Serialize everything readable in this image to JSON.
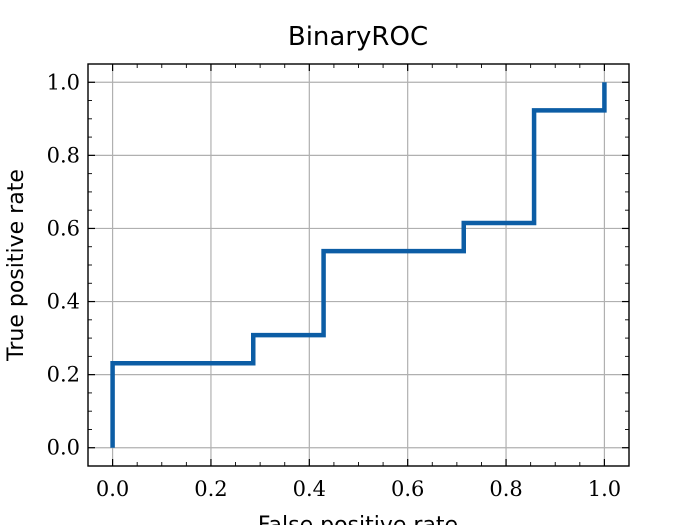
{
  "chart_data": {
    "type": "line",
    "title": "BinaryROC",
    "xlabel": "False positive rate",
    "ylabel": "True positive rate",
    "xlim": [
      -0.05,
      1.05
    ],
    "ylim": [
      -0.05,
      1.05
    ],
    "xticks": [
      0.0,
      0.2,
      0.4,
      0.6,
      0.8,
      1.0
    ],
    "yticks": [
      0.0,
      0.2,
      0.4,
      0.6,
      0.8,
      1.0
    ],
    "xtick_labels": [
      "0.0",
      "0.2",
      "0.4",
      "0.6",
      "0.8",
      "1.0"
    ],
    "ytick_labels": [
      "0.0",
      "0.2",
      "0.4",
      "0.6",
      "0.8",
      "1.0"
    ],
    "grid": true,
    "series": [
      {
        "color": "#0c5da5",
        "x": [
          0.0,
          0.0,
          0.286,
          0.286,
          0.429,
          0.429,
          0.714,
          0.714,
          0.857,
          0.857,
          1.0,
          1.0
        ],
        "y": [
          0.0,
          0.231,
          0.231,
          0.308,
          0.308,
          0.538,
          0.538,
          0.615,
          0.615,
          0.923,
          0.923,
          1.0
        ]
      }
    ]
  }
}
